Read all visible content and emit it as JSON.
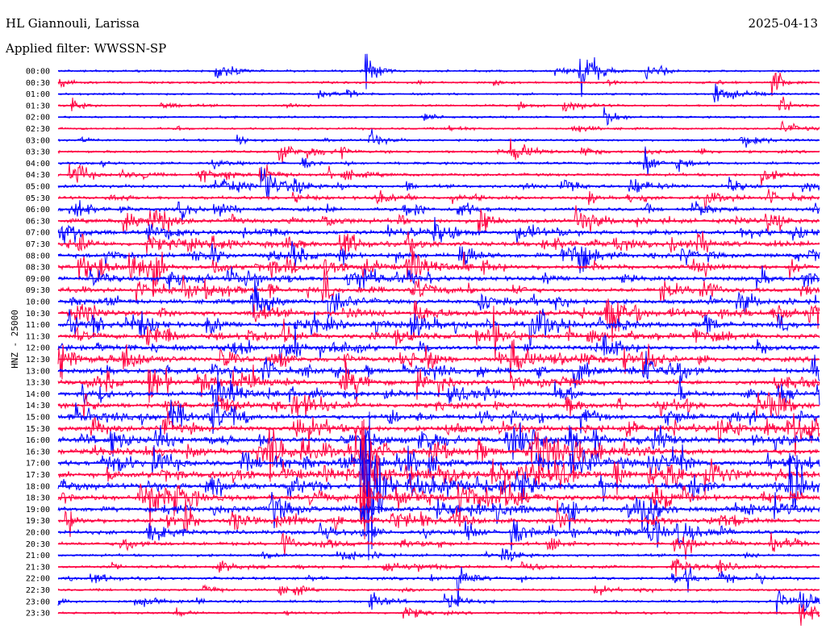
{
  "header": {
    "station": "HL Giannouli, Larissa",
    "date": "2025-04-13",
    "filter": "Applied filter: WWSSN-SP"
  },
  "chart_data": {
    "type": "line",
    "title": "HL Giannouli, Larissa",
    "ylabel": "HNZ - 25000",
    "minutes_per_row": 30,
    "colors": {
      "even": "#0000ff",
      "odd": "#ff0040"
    },
    "rows": [
      "00:00",
      "00:30",
      "01:00",
      "01:30",
      "02:00",
      "02:30",
      "03:00",
      "03:30",
      "04:00",
      "04:30",
      "05:00",
      "05:30",
      "06:00",
      "06:30",
      "07:00",
      "07:30",
      "08:00",
      "08:30",
      "09:00",
      "09:30",
      "10:00",
      "10:30",
      "11:00",
      "11:30",
      "12:00",
      "12:30",
      "13:00",
      "13:30",
      "14:00",
      "14:30",
      "15:00",
      "15:30",
      "16:00",
      "16:30",
      "17:00",
      "17:30",
      "18:00",
      "18:30",
      "19:00",
      "19:30",
      "20:00",
      "20:30",
      "21:00",
      "21:30",
      "22:00",
      "22:30",
      "23:00",
      "23:30"
    ],
    "activity": [
      0.12,
      0.12,
      0.1,
      0.12,
      0.1,
      0.1,
      0.15,
      0.2,
      0.2,
      0.25,
      0.3,
      0.3,
      0.35,
      0.45,
      0.45,
      0.5,
      0.5,
      0.5,
      0.5,
      0.45,
      0.5,
      0.6,
      0.6,
      0.55,
      0.5,
      0.55,
      0.55,
      0.55,
      0.5,
      0.55,
      0.55,
      0.65,
      0.65,
      0.7,
      0.65,
      0.7,
      0.65,
      0.7,
      0.6,
      0.5,
      0.45,
      0.35,
      0.2,
      0.25,
      0.25,
      0.15,
      0.2,
      0.15
    ],
    "events": [
      {
        "row": 0,
        "minute": 12.2,
        "amplitude": 1.2
      },
      {
        "row": 0,
        "minute": 20.6,
        "amplitude": 1.6
      },
      {
        "row": 0,
        "minute": 23.2,
        "amplitude": 0.6
      },
      {
        "row": 1,
        "minute": 28.2,
        "amplitude": 1.0
      },
      {
        "row": 3,
        "minute": 0.6,
        "amplitude": 0.5
      },
      {
        "row": 10,
        "minute": 8.1,
        "amplitude": 2.0
      },
      {
        "row": 35,
        "minute": 12.0,
        "amplitude": 4.5
      },
      {
        "row": 44,
        "minute": 15.8,
        "amplitude": 1.5
      },
      {
        "row": 46,
        "minute": 28.4,
        "amplitude": 0.8
      }
    ]
  }
}
